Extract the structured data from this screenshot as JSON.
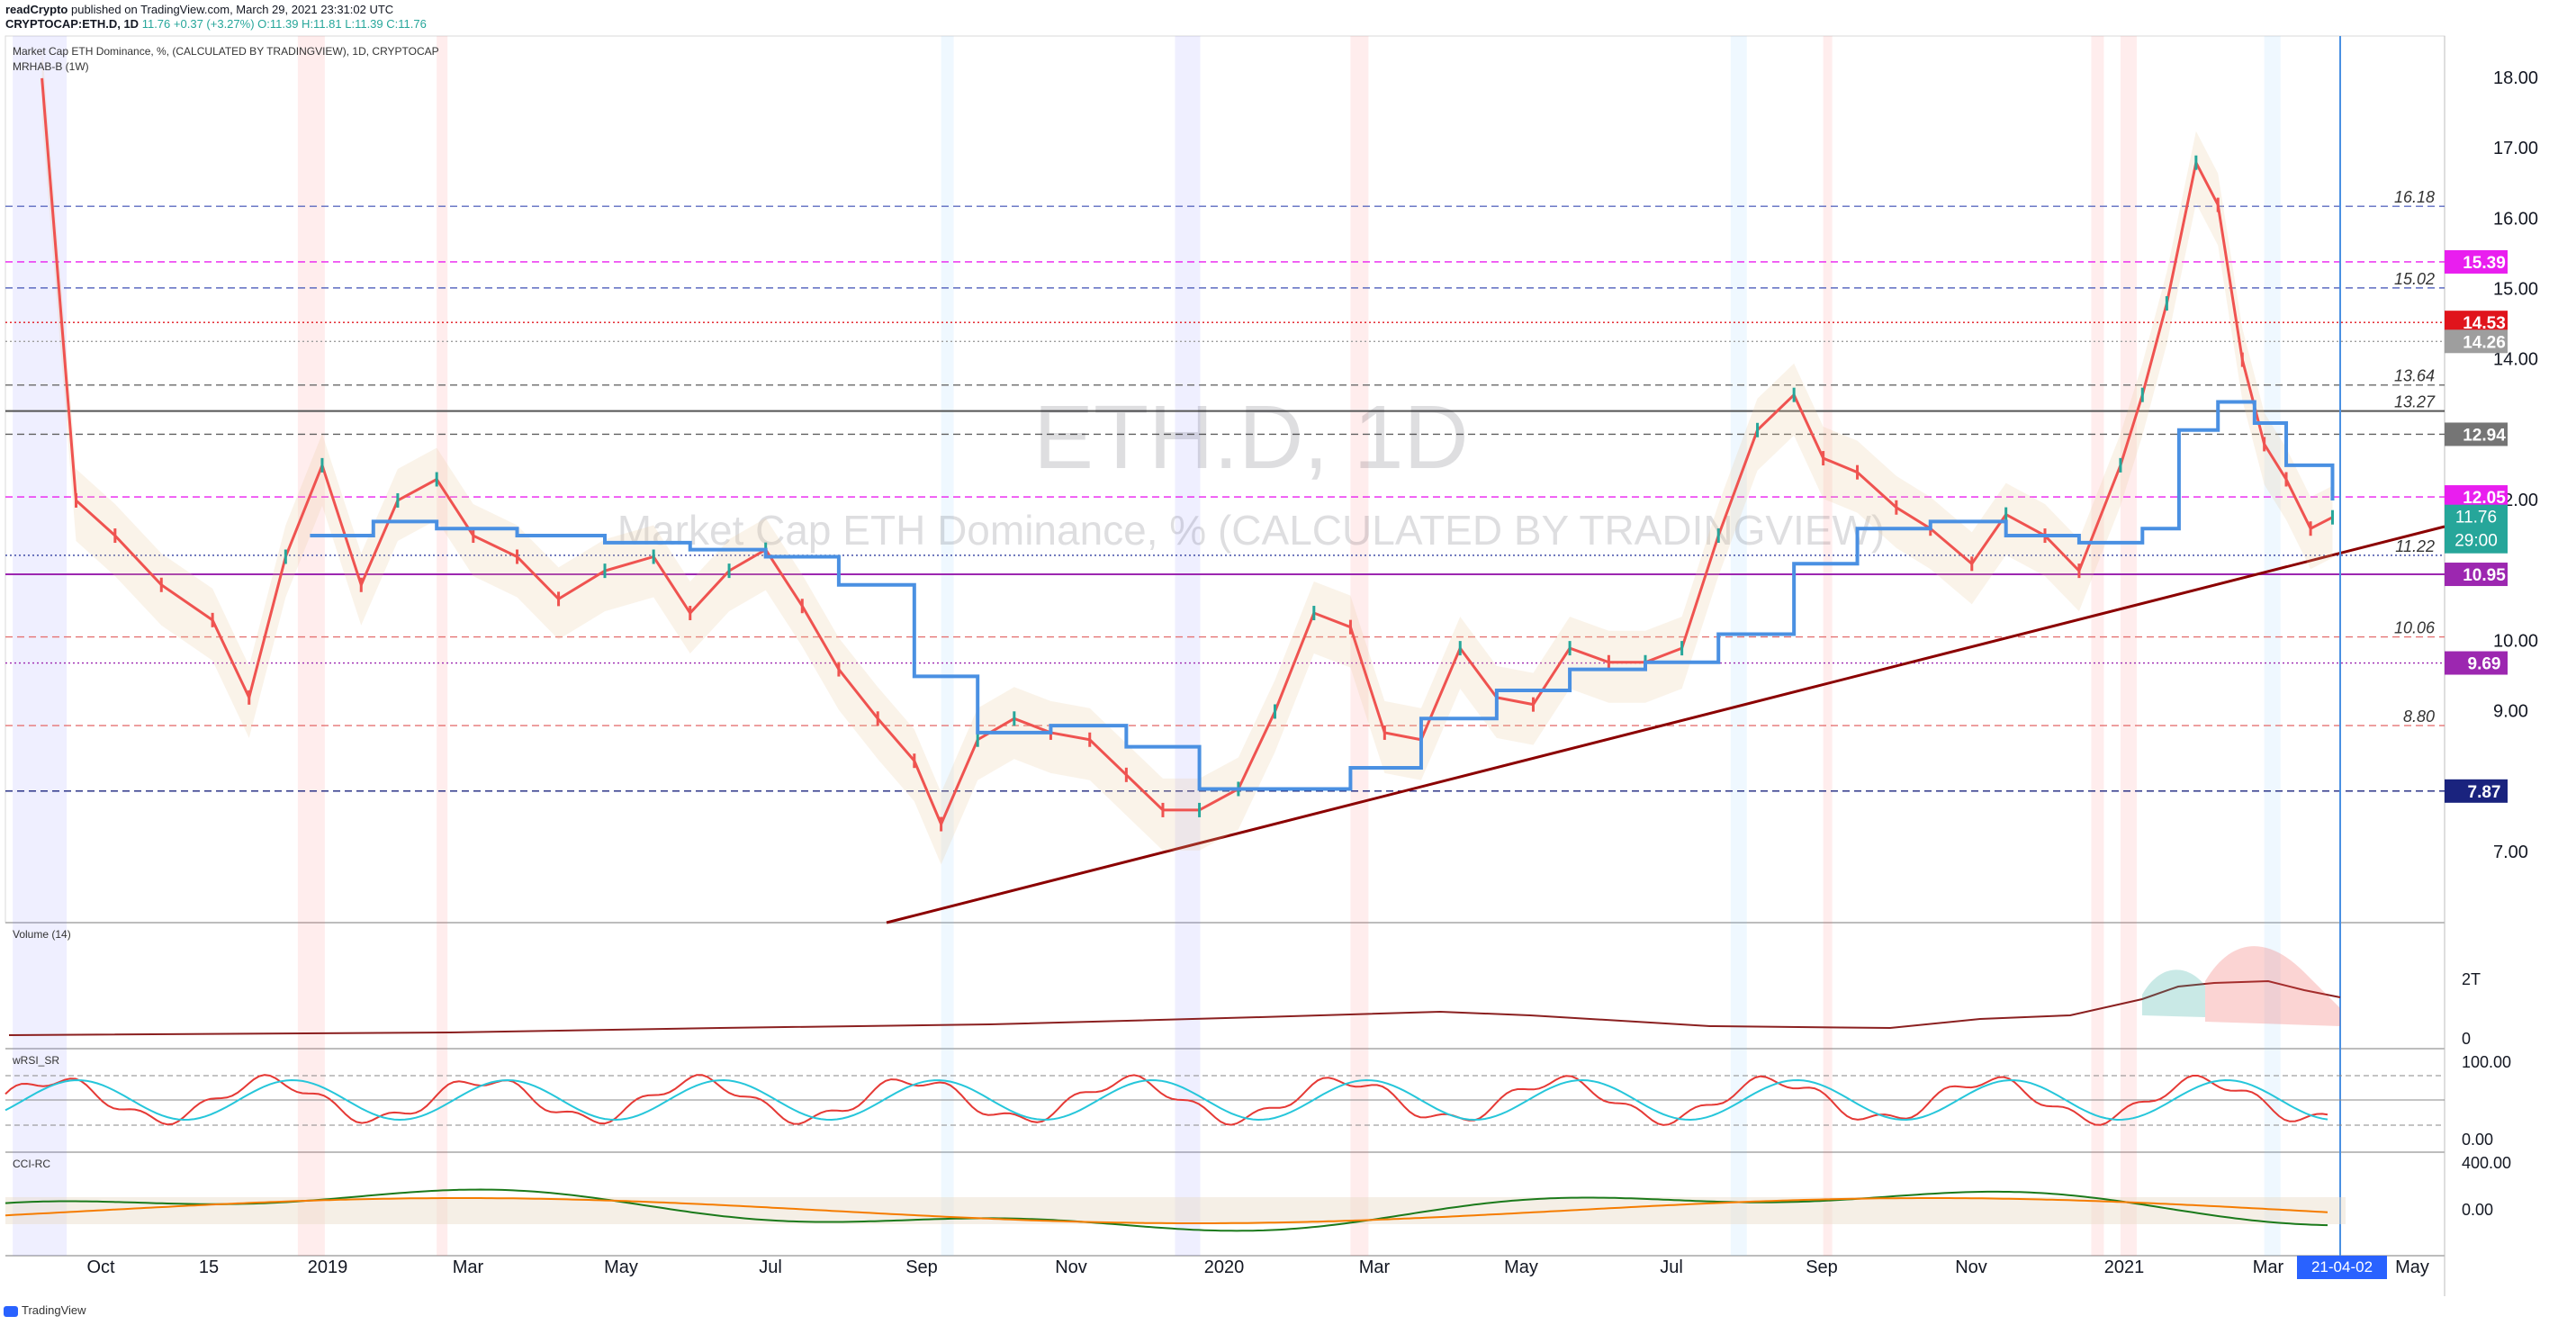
{
  "header": {
    "publisher": "readCrypto",
    "published_text": "published on TradingView.com, March 29, 2021 23:31:02 UTC",
    "symbol": "CRYPTOCAP:ETH.D, 1D",
    "last": "11.76",
    "change": "+0.37 (+3.27%)",
    "ohlc": "O:11.39 H:11.81 L:11.39 C:11.76"
  },
  "legend": {
    "main": "Market Cap ETH Dominance, %, (CALCULATED BY TRADINGVIEW), 1D, CRYPTOCAP",
    "indicator": "MRHAB-B (1W)",
    "volume": "Volume (14)",
    "wrsi": "wRSI_SR",
    "cci": "CCI-RC"
  },
  "watermark": {
    "symbol": "ETH.D, 1D",
    "description": "Market Cap ETH Dominance, % (CALCULATED BY TRADINGVIEW)"
  },
  "footer": {
    "brand": "TradingView"
  },
  "colors": {
    "up": "#26a69a",
    "down": "#ef5350",
    "trendline": "#8b0000",
    "ma_red": "#ef5350",
    "ma_purple": "#9c4f96",
    "ma_orange": "#f5c342",
    "ma_blue": "#4a90e2"
  },
  "chart_data": {
    "type": "line",
    "title": "Market Cap ETH Dominance, % (CALCULATED BY TRADINGVIEW)",
    "xlabel": "",
    "ylabel": "",
    "ylim": [
      6.0,
      18.6
    ],
    "yticks": [
      "18.00",
      "17.00",
      "16.00",
      "15.00",
      "14.00",
      "12.00",
      "10.00",
      "9.00",
      "7.00"
    ],
    "xticks": [
      "Oct",
      "15",
      "2019",
      "Mar",
      "May",
      "Jul",
      "Sep",
      "Nov",
      "2020",
      "Mar",
      "May",
      "Jul",
      "Sep",
      "Nov",
      "2021",
      "Mar",
      "May"
    ],
    "x_label_highlight": "21-04-02",
    "levels": [
      {
        "value": 16.18,
        "label": "16.18",
        "style": "dashed",
        "color": "#5c6bc0"
      },
      {
        "value": 15.39,
        "label": "15.39",
        "style": "dashed",
        "color": "#e91eef",
        "badge": true
      },
      {
        "value": 15.02,
        "label": "15.02",
        "style": "dashed",
        "color": "#5c6bc0"
      },
      {
        "value": 14.53,
        "label": "14.53",
        "style": "dotted",
        "color": "#e0141c",
        "badge": true
      },
      {
        "value": 14.26,
        "label": "14.26",
        "style": "dotted",
        "color": "#9e9e9e",
        "badge": true
      },
      {
        "value": 13.64,
        "label": "13.64",
        "style": "dashed",
        "color": "#757575"
      },
      {
        "value": 13.27,
        "label": "13.27",
        "style": "solid",
        "color": "#555555"
      },
      {
        "value": 12.94,
        "label": "12.94",
        "style": "dashed",
        "color": "#616161",
        "badge": true
      },
      {
        "value": 12.05,
        "label": "12.05",
        "style": "dashed",
        "color": "#e91eef",
        "badge": true
      },
      {
        "value": 11.22,
        "label": "11.22",
        "style": "dotted",
        "color": "#303f9f"
      },
      {
        "value": 10.95,
        "label": "10.95",
        "style": "solid",
        "color": "#9c27b0",
        "badge": true
      },
      {
        "value": 10.06,
        "label": "10.06",
        "style": "dashed",
        "color": "#e57373"
      },
      {
        "value": 9.69,
        "label": "9.69",
        "style": "dotted",
        "color": "#9c27b0",
        "badge": true
      },
      {
        "value": 8.8,
        "label": "8.80",
        "style": "dashed",
        "color": "#e57373"
      },
      {
        "value": 7.87,
        "label": "7.87",
        "style": "dashed",
        "color": "#1a237e",
        "badge": true
      }
    ],
    "last_price": {
      "value": 11.76,
      "label": "11.76",
      "countdown": "29:00"
    },
    "series": [
      {
        "name": "ETH.D",
        "x": [
          "2018-09-01",
          "2018-09-15",
          "2018-10-01",
          "2018-10-20",
          "2018-11-10",
          "2018-11-25",
          "2018-12-10",
          "2018-12-25",
          "2019-01-10",
          "2019-01-25",
          "2019-02-10",
          "2019-02-25",
          "2019-03-15",
          "2019-04-01",
          "2019-04-20",
          "2019-05-10",
          "2019-05-25",
          "2019-06-10",
          "2019-06-25",
          "2019-07-10",
          "2019-07-25",
          "2019-08-10",
          "2019-08-25",
          "2019-09-05",
          "2019-09-20",
          "2019-10-05",
          "2019-10-20",
          "2019-11-05",
          "2019-11-20",
          "2019-12-05",
          "2019-12-20",
          "2020-01-05",
          "2020-01-20",
          "2020-02-05",
          "2020-02-20",
          "2020-03-05",
          "2020-03-20",
          "2020-04-05",
          "2020-04-20",
          "2020-05-05",
          "2020-05-20",
          "2020-06-05",
          "2020-06-20",
          "2020-07-05",
          "2020-07-20",
          "2020-08-05",
          "2020-08-20",
          "2020-09-01",
          "2020-09-15",
          "2020-10-01",
          "2020-10-15",
          "2020-11-01",
          "2020-11-15",
          "2020-12-01",
          "2020-12-15",
          "2021-01-01",
          "2021-01-10",
          "2021-01-20",
          "2021-02-01",
          "2021-02-10",
          "2021-02-20",
          "2021-03-01",
          "2021-03-10",
          "2021-03-20",
          "2021-03-29"
        ],
        "values": [
          18.0,
          12.0,
          11.5,
          10.8,
          10.3,
          9.2,
          11.2,
          12.5,
          10.8,
          12.0,
          12.3,
          11.5,
          11.2,
          10.6,
          11.0,
          11.2,
          10.4,
          11.0,
          11.3,
          10.5,
          9.6,
          8.9,
          8.3,
          7.4,
          8.6,
          8.9,
          8.7,
          8.6,
          8.1,
          7.6,
          7.6,
          7.9,
          9.0,
          10.4,
          10.2,
          8.7,
          8.6,
          9.9,
          9.2,
          9.1,
          9.9,
          9.7,
          9.7,
          9.9,
          11.5,
          13.0,
          13.5,
          12.6,
          12.4,
          11.9,
          11.6,
          11.1,
          11.8,
          11.5,
          11.0,
          12.5,
          13.5,
          14.8,
          16.8,
          16.2,
          14.0,
          12.8,
          12.3,
          11.6,
          11.76
        ]
      },
      {
        "name": "MRHAB-B (1W)",
        "x": [
          "2018-12-20",
          "2019-01-15",
          "2019-02-10",
          "2019-03-15",
          "2019-04-20",
          "2019-05-25",
          "2019-06-25",
          "2019-07-25",
          "2019-08-25",
          "2019-09-20",
          "2019-10-20",
          "2019-11-20",
          "2019-12-20",
          "2020-01-20",
          "2020-02-20",
          "2020-03-20",
          "2020-04-20",
          "2020-05-20",
          "2020-06-20",
          "2020-07-20",
          "2020-08-20",
          "2020-09-15",
          "2020-10-15",
          "2020-11-15",
          "2020-12-15",
          "2021-01-10",
          "2021-01-25",
          "2021-02-10",
          "2021-02-25",
          "2021-03-10",
          "2021-03-29"
        ],
        "values": [
          11.5,
          11.7,
          11.6,
          11.5,
          11.4,
          11.3,
          11.2,
          10.8,
          9.5,
          8.7,
          8.8,
          8.5,
          7.9,
          7.9,
          8.2,
          8.9,
          9.3,
          9.6,
          9.7,
          10.1,
          11.1,
          11.6,
          11.7,
          11.5,
          11.4,
          11.6,
          13.0,
          13.4,
          13.1,
          12.5,
          12.0
        ]
      }
    ]
  },
  "volume_panel": {
    "tick_labels": [
      "2T",
      "0"
    ]
  },
  "wrsi_panel": {
    "tick_labels": [
      "100.00",
      "0.00"
    ]
  },
  "cci_panel": {
    "tick_labels": [
      "400.00",
      "0.00"
    ]
  }
}
